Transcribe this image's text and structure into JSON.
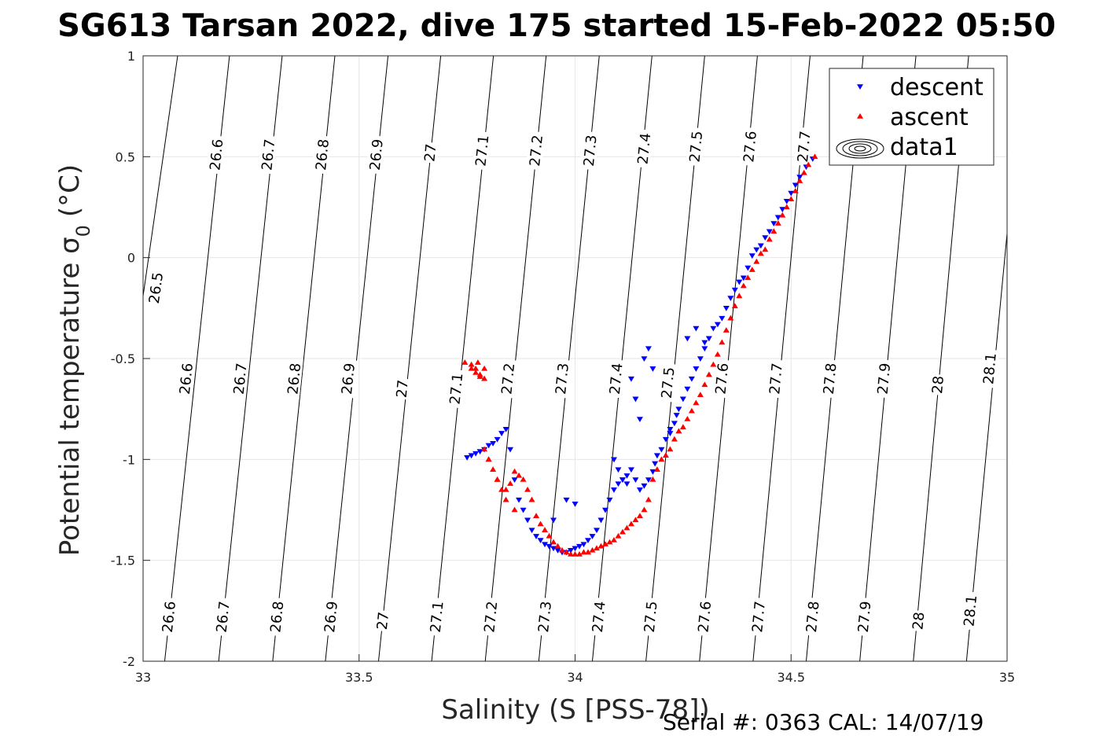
{
  "title": "SG613 Tarsan 2022, dive 175 started 15-Feb-2022 05:50",
  "footer": "Serial #: 0363  CAL: 14/07/19",
  "chart_data": {
    "type": "scatter",
    "title": "SG613 Tarsan 2022, dive 175 started 15-Feb-2022 05:50",
    "xlabel": "Salinity (S [PSS-78])",
    "ylabel_main": "Potential temperature σ",
    "ylabel_sub": "0",
    "ylabel_unit": "(°C)",
    "xlim": [
      33,
      35
    ],
    "ylim": [
      -2,
      1
    ],
    "xticks": [
      "33",
      "33.5",
      "34",
      "34.5",
      "35"
    ],
    "yticks": [
      "1",
      "0.5",
      "0",
      "-0.5",
      "-1",
      "-1.5",
      "-2"
    ],
    "grid": true,
    "legend": {
      "position": "top-right",
      "entries": [
        {
          "label": "descent",
          "marker": "triangle-down",
          "color": "#0000ff"
        },
        {
          "label": "ascent",
          "marker": "triangle-up",
          "color": "#ff0000"
        },
        {
          "label": "data1",
          "marker": "contour",
          "color": "#000000"
        }
      ]
    },
    "density_contours": {
      "levels": [
        "26.5",
        "26.6",
        "26.7",
        "26.8",
        "26.9",
        "27",
        "27.1",
        "27.2",
        "27.3",
        "27.4",
        "27.5",
        "27.6",
        "27.7",
        "27.8",
        "27.9",
        "28",
        "28.1"
      ],
      "lines": [
        {
          "level": "26.5",
          "bottom": [
            33.0,
            -0.19
          ],
          "top": [
            33.08,
            1.0
          ]
        },
        {
          "level": "26.6",
          "bottom": [
            33.05,
            -2.0
          ],
          "top": [
            33.2,
            1.0
          ]
        },
        {
          "level": "26.7",
          "bottom": [
            33.175,
            -2.0
          ],
          "top": [
            33.322,
            1.0
          ]
        },
        {
          "level": "26.8",
          "bottom": [
            33.3,
            -2.0
          ],
          "top": [
            33.444,
            1.0
          ]
        },
        {
          "level": "26.9",
          "bottom": [
            33.422,
            -2.0
          ],
          "top": [
            33.567,
            1.0
          ]
        },
        {
          "level": "27",
          "bottom": [
            33.545,
            -2.0
          ],
          "top": [
            33.689,
            1.0
          ]
        },
        {
          "level": "27.1",
          "bottom": [
            33.668,
            -2.0
          ],
          "top": [
            33.811,
            1.0
          ]
        },
        {
          "level": "27.2",
          "bottom": [
            33.792,
            -2.0
          ],
          "top": [
            33.933,
            1.0
          ]
        },
        {
          "level": "27.3",
          "bottom": [
            33.916,
            -2.0
          ],
          "top": [
            34.056,
            1.0
          ]
        },
        {
          "level": "27.4",
          "bottom": [
            34.04,
            -2.0
          ],
          "top": [
            34.178,
            1.0
          ]
        },
        {
          "level": "27.5",
          "bottom": [
            34.164,
            -2.0
          ],
          "top": [
            34.3,
            1.0
          ]
        },
        {
          "level": "27.6",
          "bottom": [
            34.288,
            -2.0
          ],
          "top": [
            34.422,
            1.0
          ]
        },
        {
          "level": "27.7",
          "bottom": [
            34.412,
            -2.0
          ],
          "top": [
            34.544,
            1.0
          ]
        },
        {
          "level": "27.8",
          "bottom": [
            34.535,
            -2.0
          ],
          "top": [
            34.667,
            1.0
          ]
        },
        {
          "level": "27.9",
          "bottom": [
            34.659,
            -2.0
          ],
          "top": [
            34.789,
            1.0
          ]
        },
        {
          "level": "28",
          "bottom": [
            34.783,
            -2.0
          ],
          "top": [
            34.911,
            1.0
          ]
        },
        {
          "level": "28.1",
          "bottom": [
            34.906,
            -2.0
          ],
          "top": [
            35.0,
            0.12
          ]
        }
      ],
      "labels": [
        {
          "text": "26.5",
          "x": 33.03,
          "t": -0.15
        },
        {
          "text": "26.6",
          "x": 33.17,
          "t": 0.51
        },
        {
          "text": "26.7",
          "x": 33.29,
          "t": 0.51
        },
        {
          "text": "26.8",
          "x": 33.415,
          "t": 0.51
        },
        {
          "text": "26.9",
          "x": 33.54,
          "t": 0.51
        },
        {
          "text": "27",
          "x": 33.665,
          "t": 0.52
        },
        {
          "text": "27.1",
          "x": 33.785,
          "t": 0.53
        },
        {
          "text": "27.2",
          "x": 33.91,
          "t": 0.53
        },
        {
          "text": "27.3",
          "x": 34.035,
          "t": 0.53
        },
        {
          "text": "27.4",
          "x": 34.16,
          "t": 0.54
        },
        {
          "text": "27.5",
          "x": 34.28,
          "t": 0.55
        },
        {
          "text": "27.6",
          "x": 34.405,
          "t": 0.55
        },
        {
          "text": "27.7",
          "x": 34.53,
          "t": 0.55
        },
        {
          "text": "26.6",
          "x": 33.1,
          "t": -0.6
        },
        {
          "text": "26.7",
          "x": 33.225,
          "t": -0.6
        },
        {
          "text": "26.8",
          "x": 33.35,
          "t": -0.6
        },
        {
          "text": "26.9",
          "x": 33.475,
          "t": -0.6
        },
        {
          "text": "27",
          "x": 33.6,
          "t": -0.65
        },
        {
          "text": "27.1",
          "x": 33.725,
          "t": -0.65
        },
        {
          "text": "27.2",
          "x": 33.845,
          "t": -0.6
        },
        {
          "text": "27.3",
          "x": 33.97,
          "t": -0.6
        },
        {
          "text": "27.4",
          "x": 34.095,
          "t": -0.6
        },
        {
          "text": "27.5",
          "x": 34.215,
          "t": -0.62
        },
        {
          "text": "27.6",
          "x": 34.34,
          "t": -0.6
        },
        {
          "text": "27.7",
          "x": 34.465,
          "t": -0.6
        },
        {
          "text": "27.8",
          "x": 34.59,
          "t": -0.6
        },
        {
          "text": "27.9",
          "x": 34.715,
          "t": -0.6
        },
        {
          "text": "28",
          "x": 34.84,
          "t": -0.63
        },
        {
          "text": "28.1",
          "x": 34.96,
          "t": -0.55
        },
        {
          "text": "26.6",
          "x": 33.06,
          "t": -1.78
        },
        {
          "text": "26.7",
          "x": 33.185,
          "t": -1.78
        },
        {
          "text": "26.8",
          "x": 33.31,
          "t": -1.78
        },
        {
          "text": "26.9",
          "x": 33.435,
          "t": -1.78
        },
        {
          "text": "27",
          "x": 33.555,
          "t": -1.8
        },
        {
          "text": "27.1",
          "x": 33.68,
          "t": -1.78
        },
        {
          "text": "27.2",
          "x": 33.805,
          "t": -1.78
        },
        {
          "text": "27.3",
          "x": 33.93,
          "t": -1.78
        },
        {
          "text": "27.4",
          "x": 34.055,
          "t": -1.78
        },
        {
          "text": "27.5",
          "x": 34.175,
          "t": -1.78
        },
        {
          "text": "27.6",
          "x": 34.3,
          "t": -1.78
        },
        {
          "text": "27.7",
          "x": 34.425,
          "t": -1.78
        },
        {
          "text": "27.8",
          "x": 34.55,
          "t": -1.78
        },
        {
          "text": "27.9",
          "x": 34.67,
          "t": -1.78
        },
        {
          "text": "28",
          "x": 34.795,
          "t": -1.8
        },
        {
          "text": "28.1",
          "x": 34.915,
          "t": -1.75
        }
      ]
    },
    "series": [
      {
        "name": "descent",
        "marker": "triangle-down",
        "color": "#0000ff",
        "x": [
          34.55,
          34.535,
          34.52,
          34.51,
          34.5,
          34.49,
          34.48,
          34.47,
          34.46,
          34.45,
          34.44,
          34.43,
          34.42,
          34.41,
          34.4,
          34.39,
          34.38,
          34.37,
          34.36,
          34.35,
          34.34,
          34.33,
          34.32,
          34.31,
          34.3,
          34.29,
          34.28,
          34.27,
          34.26,
          34.25,
          34.24,
          34.235,
          34.23,
          34.22,
          34.21,
          34.2,
          34.19,
          34.185,
          34.18,
          34.17,
          34.16,
          34.15,
          34.14,
          34.13,
          34.12,
          34.11,
          34.1,
          34.09,
          34.08,
          34.07,
          34.06,
          34.05,
          34.04,
          34.03,
          34.02,
          34.01,
          34.0,
          33.99,
          33.98,
          33.97,
          33.96,
          33.95,
          33.94,
          33.93,
          33.92,
          33.91,
          33.9,
          33.89,
          33.88,
          33.87,
          33.86,
          33.85,
          33.84,
          33.83,
          33.82,
          33.81,
          33.8,
          33.79,
          33.78,
          33.77,
          33.76,
          33.75,
          34.16,
          34.17,
          34.18,
          34.13,
          34.14,
          34.15,
          34.09,
          34.1,
          34.11,
          34.12,
          33.95,
          33.98,
          34.0,
          34.26,
          34.28,
          34.3,
          34.22
        ],
        "y": [
          0.49,
          0.45,
          0.4,
          0.36,
          0.32,
          0.28,
          0.24,
          0.2,
          0.17,
          0.13,
          0.1,
          0.06,
          0.04,
          0.01,
          -0.05,
          -0.1,
          -0.12,
          -0.16,
          -0.2,
          -0.25,
          -0.3,
          -0.33,
          -0.35,
          -0.4,
          -0.45,
          -0.5,
          -0.55,
          -0.6,
          -0.65,
          -0.7,
          -0.75,
          -0.78,
          -0.82,
          -0.87,
          -0.9,
          -0.95,
          -0.98,
          -1.02,
          -1.06,
          -1.1,
          -1.13,
          -1.15,
          -1.1,
          -1.05,
          -1.08,
          -1.1,
          -1.12,
          -1.15,
          -1.2,
          -1.25,
          -1.3,
          -1.35,
          -1.38,
          -1.4,
          -1.42,
          -1.43,
          -1.44,
          -1.45,
          -1.46,
          -1.46,
          -1.45,
          -1.44,
          -1.43,
          -1.42,
          -1.4,
          -1.38,
          -1.35,
          -1.3,
          -1.25,
          -1.2,
          -1.1,
          -0.95,
          -0.85,
          -0.87,
          -0.9,
          -0.92,
          -0.93,
          -0.95,
          -0.96,
          -0.97,
          -0.98,
          -0.99,
          -0.5,
          -0.45,
          -0.55,
          -0.6,
          -0.7,
          -0.8,
          -1.0,
          -1.05,
          -1.1,
          -1.12,
          -1.3,
          -1.2,
          -1.22,
          -0.4,
          -0.35,
          -0.42,
          -0.85
        ]
      },
      {
        "name": "ascent",
        "marker": "triangle-up",
        "color": "#ff0000",
        "x": [
          34.555,
          34.54,
          34.53,
          34.52,
          34.51,
          34.5,
          34.49,
          34.48,
          34.47,
          34.46,
          34.45,
          34.44,
          34.43,
          34.42,
          34.41,
          34.4,
          34.39,
          34.38,
          34.37,
          34.36,
          34.35,
          34.34,
          34.33,
          34.32,
          34.31,
          34.3,
          34.29,
          34.28,
          34.27,
          34.26,
          34.25,
          34.24,
          34.23,
          34.22,
          34.21,
          34.2,
          34.19,
          34.18,
          34.17,
          34.16,
          34.15,
          34.14,
          34.13,
          34.12,
          34.11,
          34.1,
          34.09,
          34.08,
          34.07,
          34.06,
          34.05,
          34.04,
          34.03,
          34.02,
          34.01,
          34.0,
          33.99,
          33.98,
          33.97,
          33.96,
          33.95,
          33.94,
          33.93,
          33.92,
          33.91,
          33.9,
          33.89,
          33.88,
          33.87,
          33.86,
          33.85,
          33.84,
          33.83,
          33.82,
          33.81,
          33.8,
          33.79,
          33.78,
          33.77,
          33.76,
          33.745,
          33.76,
          33.77,
          33.78,
          33.79,
          33.79,
          33.775,
          33.8,
          33.82,
          33.84,
          33.86
        ],
        "y": [
          0.5,
          0.46,
          0.42,
          0.38,
          0.33,
          0.29,
          0.25,
          0.21,
          0.17,
          0.13,
          0.09,
          0.04,
          0.02,
          -0.02,
          -0.06,
          -0.1,
          -0.14,
          -0.19,
          -0.24,
          -0.3,
          -0.36,
          -0.42,
          -0.48,
          -0.53,
          -0.58,
          -0.63,
          -0.68,
          -0.72,
          -0.76,
          -0.8,
          -0.84,
          -0.86,
          -0.9,
          -0.95,
          -0.98,
          -1.0,
          -1.05,
          -1.1,
          -1.2,
          -1.25,
          -1.28,
          -1.3,
          -1.32,
          -1.34,
          -1.36,
          -1.38,
          -1.4,
          -1.41,
          -1.42,
          -1.43,
          -1.44,
          -1.45,
          -1.46,
          -1.46,
          -1.47,
          -1.47,
          -1.47,
          -1.46,
          -1.45,
          -1.43,
          -1.41,
          -1.38,
          -1.35,
          -1.32,
          -1.28,
          -1.2,
          -1.15,
          -1.1,
          -1.08,
          -1.06,
          -1.12,
          -1.2,
          -1.15,
          -1.1,
          -1.05,
          -1.0,
          -0.95,
          -0.58,
          -0.55,
          -0.53,
          -0.52,
          -0.55,
          -0.57,
          -0.59,
          -0.6,
          -0.55,
          -0.52,
          -1.0,
          -1.1,
          -1.15,
          -1.25
        ]
      }
    ]
  }
}
